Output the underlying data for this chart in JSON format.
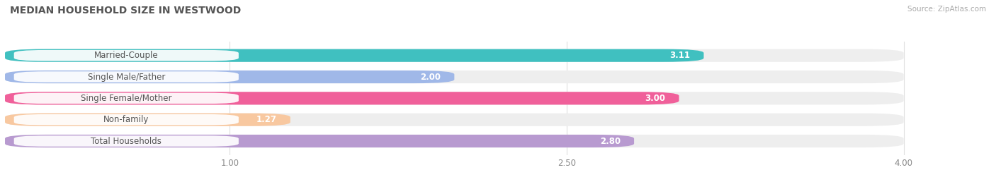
{
  "title": "MEDIAN HOUSEHOLD SIZE IN WESTWOOD",
  "source": "Source: ZipAtlas.com",
  "categories": [
    "Married-Couple",
    "Single Male/Father",
    "Single Female/Mother",
    "Non-family",
    "Total Households"
  ],
  "values": [
    3.11,
    2.0,
    3.0,
    1.27,
    2.8
  ],
  "bar_colors": [
    "#40c0c0",
    "#a0b8e8",
    "#f0609a",
    "#f8c8a0",
    "#b89ad0"
  ],
  "value_labels": [
    "3.11",
    "2.00",
    "3.00",
    "1.27",
    "2.80"
  ],
  "xlim_start": 0.0,
  "xlim_end": 4.3,
  "xmin": 0.0,
  "xmax": 4.0,
  "xticks": [
    1.0,
    2.5,
    4.0
  ],
  "xtick_labels": [
    "1.00",
    "2.50",
    "4.00"
  ],
  "background_color": "#ffffff",
  "bar_bg_color": "#eeeeee",
  "grid_color": "#dddddd",
  "title_fontsize": 10,
  "label_fontsize": 8.5,
  "value_fontsize": 8.5
}
